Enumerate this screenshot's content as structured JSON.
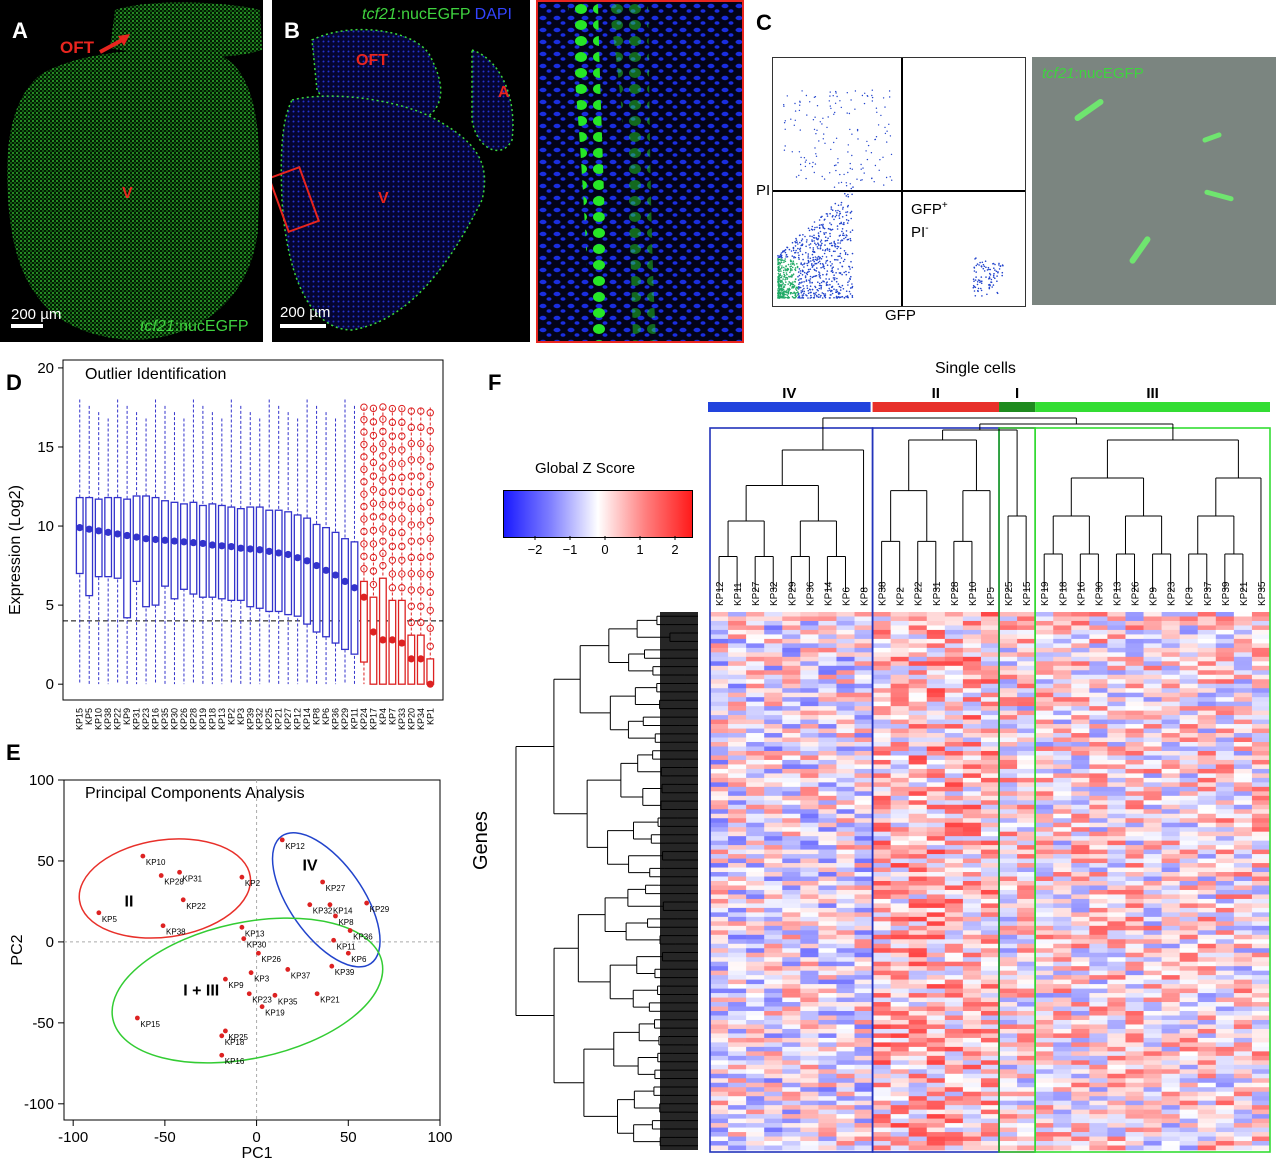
{
  "panelA": {
    "letter": "A",
    "oft": "OFT",
    "v": "V",
    "scale": "200 µm",
    "stain_italic": "tcf21",
    "stain_rest": ":nucEGFP"
  },
  "panelB": {
    "letter": "B",
    "stain_italic": "tcf21",
    "stain_rest": ":nucEGFP",
    "dapi": "DAPI",
    "oft": "OFT",
    "a": "A",
    "v": "V",
    "scale": "200 µm"
  },
  "panelC": {
    "letter": "C",
    "pi": "PI",
    "gfp_axis": "GFP",
    "gate_line1": "GFP",
    "gate_sup1": "+",
    "gate_line2": "PI",
    "gate_sup2": "-",
    "cell_stain_italic": "tcf21",
    "cell_stain_rest": ":nucEGFP"
  },
  "panelD": {
    "letter": "D",
    "title": "Outlier Identification",
    "ylabel": "Expression (Log2)",
    "yticks": [
      "0",
      "5",
      "10",
      "15",
      "20"
    ],
    "colors": {
      "normal": "#3333cc",
      "outlier": "#dd2222"
    }
  },
  "panelE": {
    "letter": "E",
    "title": "Principal Components Analysis",
    "xlabel": "PC1",
    "ylabel": "PC2",
    "xticks": [
      "-100",
      "-50",
      "0",
      "50",
      "100"
    ],
    "yticks": [
      "100",
      "50",
      "0",
      "-50",
      "-100"
    ],
    "cluster_labels": [
      "II",
      "IV",
      "I + III"
    ]
  },
  "panelF": {
    "letter": "F",
    "title": "Single cells",
    "legend_title": "Global Z Score",
    "legend_ticks": [
      "−2",
      "−1",
      "0",
      "1",
      "2"
    ],
    "genes_label": "Genes",
    "groups": [
      {
        "name": "IV",
        "color": "#2244dd"
      },
      {
        "name": "II",
        "color": "#e8302a"
      },
      {
        "name": "I",
        "color": "#1e8a1e"
      },
      {
        "name": "III",
        "color": "#33dd33"
      }
    ],
    "columns": [
      "KP12",
      "KP11",
      "KP27",
      "KP32",
      "KP29",
      "KP36",
      "KP14",
      "KP6",
      "KP8",
      "KP38",
      "KP2",
      "KP22",
      "KP31",
      "KP28",
      "KP10",
      "KP5",
      "KP25",
      "KP15",
      "KP19",
      "KP18",
      "KP16",
      "KP30",
      "KP13",
      "KP26",
      "KP9",
      "KP23",
      "KP3",
      "KP37",
      "KP39",
      "KP21",
      "KP35"
    ]
  },
  "chart_data": [
    {
      "type": "box",
      "panel": "D",
      "title": "Outlier Identification",
      "xlabel": "",
      "ylabel": "Expression (Log2)",
      "ylim": [
        0,
        20
      ],
      "threshold": 4,
      "categories": [
        "KP15",
        "KP5",
        "KP10",
        "KP38",
        "KP22",
        "KP9",
        "KP31",
        "KP23",
        "KP16",
        "KP35",
        "KP30",
        "KP26",
        "KP28",
        "KP19",
        "KP18",
        "KP13",
        "KP2",
        "KP3",
        "KP39",
        "KP32",
        "KP25",
        "KP21",
        "KP27",
        "KP12",
        "KP14",
        "KP8",
        "KP6",
        "KP36",
        "KP29",
        "KP11",
        "KP24",
        "KP17",
        "KP4",
        "KP7",
        "KP33",
        "KP20",
        "KP34",
        "KP1"
      ],
      "medians": [
        9.9,
        9.8,
        9.7,
        9.6,
        9.5,
        9.4,
        9.3,
        9.2,
        9.15,
        9.1,
        9.05,
        9.0,
        8.95,
        8.9,
        8.8,
        8.75,
        8.7,
        8.6,
        8.55,
        8.5,
        8.4,
        8.3,
        8.2,
        8.0,
        7.8,
        7.5,
        7.2,
        6.9,
        6.5,
        6.1,
        5.5,
        3.3,
        2.8,
        2.8,
        2.6,
        1.6,
        1.6,
        0.0
      ],
      "q1": [
        7.0,
        5.6,
        6.8,
        6.8,
        6.7,
        4.2,
        6.5,
        4.9,
        5.0,
        6.2,
        5.4,
        6.0,
        5.7,
        5.5,
        5.5,
        5.4,
        5.3,
        5.3,
        4.9,
        4.8,
        4.6,
        4.6,
        4.4,
        4.3,
        3.8,
        3.3,
        3.0,
        2.6,
        2.2,
        1.9,
        1.4,
        0.0,
        0.0,
        0.0,
        0.0,
        0.0,
        0.0,
        0.0
      ],
      "q3": [
        11.8,
        11.8,
        11.7,
        11.8,
        11.8,
        11.7,
        11.9,
        11.9,
        11.8,
        11.6,
        11.5,
        11.4,
        11.5,
        11.3,
        11.4,
        11.3,
        11.2,
        11.1,
        11.2,
        11.2,
        11.0,
        11.0,
        10.9,
        10.7,
        10.5,
        10.1,
        9.9,
        9.6,
        9.2,
        9.0,
        6.5,
        5.5,
        6.7,
        5.3,
        5.3,
        3.1,
        3.1,
        1.6
      ],
      "outlier_group": [
        "KP24",
        "KP17",
        "KP4",
        "KP7",
        "KP33",
        "KP20",
        "KP34",
        "KP1"
      ]
    },
    {
      "type": "scatter",
      "panel": "E",
      "title": "Principal Components Analysis",
      "xlabel": "PC1",
      "ylabel": "PC2",
      "xlim": [
        -105,
        100
      ],
      "ylim": [
        -110,
        100
      ],
      "points": [
        {
          "label": "KP10",
          "x": -62,
          "y": 53
        },
        {
          "label": "KP28",
          "x": -52,
          "y": 41
        },
        {
          "label": "KP31",
          "x": -42,
          "y": 43
        },
        {
          "label": "KP2",
          "x": -8,
          "y": 40
        },
        {
          "label": "KP22",
          "x": -40,
          "y": 26
        },
        {
          "label": "KP5",
          "x": -86,
          "y": 18
        },
        {
          "label": "KP38",
          "x": -51,
          "y": 10
        },
        {
          "label": "KP12",
          "x": 14,
          "y": 63
        },
        {
          "label": "KP27",
          "x": 36,
          "y": 37
        },
        {
          "label": "KP32",
          "x": 29,
          "y": 23
        },
        {
          "label": "KP14",
          "x": 40,
          "y": 23
        },
        {
          "label": "KP29",
          "x": 60,
          "y": 24
        },
        {
          "label": "KP8",
          "x": 43,
          "y": 16
        },
        {
          "label": "KP36",
          "x": 51,
          "y": 7
        },
        {
          "label": "KP11",
          "x": 42,
          "y": 1
        },
        {
          "label": "KP6",
          "x": 50,
          "y": -7
        },
        {
          "label": "KP39",
          "x": 41,
          "y": -15
        },
        {
          "label": "KP13",
          "x": -8,
          "y": 9
        },
        {
          "label": "KP30",
          "x": -7,
          "y": 2
        },
        {
          "label": "KP26",
          "x": 1,
          "y": -7
        },
        {
          "label": "KP37",
          "x": 17,
          "y": -17
        },
        {
          "label": "KP3",
          "x": -3,
          "y": -19
        },
        {
          "label": "KP9",
          "x": -17,
          "y": -23
        },
        {
          "label": "KP23",
          "x": -4,
          "y": -32
        },
        {
          "label": "KP35",
          "x": 10,
          "y": -33
        },
        {
          "label": "KP21",
          "x": 33,
          "y": -32
        },
        {
          "label": "KP19",
          "x": 3,
          "y": -40
        },
        {
          "label": "KP15",
          "x": -65,
          "y": -47
        },
        {
          "label": "KP25",
          "x": -17,
          "y": -55
        },
        {
          "label": "KP18",
          "x": -19,
          "y": -58
        },
        {
          "label": "KP16",
          "x": -19,
          "y": -70
        }
      ],
      "clusters": [
        {
          "name": "II",
          "color": "#e8302a"
        },
        {
          "name": "IV",
          "color": "#2244cc"
        },
        {
          "name": "I + III",
          "color": "#33cc33"
        }
      ]
    },
    {
      "type": "heatmap",
      "panel": "F",
      "title": "Single cells",
      "color_scale": {
        "title": "Global Z Score",
        "range": [
          -2.5,
          2.5
        ],
        "low": "#1a1aff",
        "mid": "#ffffff",
        "high": "#ff1a1a"
      },
      "columns": [
        "KP12",
        "KP11",
        "KP27",
        "KP32",
        "KP29",
        "KP36",
        "KP14",
        "KP6",
        "KP8",
        "KP38",
        "KP2",
        "KP22",
        "KP31",
        "KP28",
        "KP10",
        "KP5",
        "KP25",
        "KP15",
        "KP19",
        "KP18",
        "KP16",
        "KP30",
        "KP13",
        "KP26",
        "KP9",
        "KP23",
        "KP3",
        "KP37",
        "KP39",
        "KP21",
        "KP35"
      ],
      "groups": [
        {
          "name": "IV",
          "columns": [
            "KP12",
            "KP11",
            "KP27",
            "KP32",
            "KP29",
            "KP36",
            "KP14",
            "KP6",
            "KP8"
          ]
        },
        {
          "name": "II",
          "columns": [
            "KP38",
            "KP2",
            "KP22",
            "KP31",
            "KP28",
            "KP10",
            "KP5"
          ]
        },
        {
          "name": "I",
          "columns": [
            "KP25",
            "KP15"
          ]
        },
        {
          "name": "III",
          "columns": [
            "KP19",
            "KP18",
            "KP16",
            "KP30",
            "KP13",
            "KP26",
            "KP9",
            "KP23",
            "KP3",
            "KP37",
            "KP39",
            "KP21",
            "KP35"
          ]
        }
      ],
      "rows_label": "Genes"
    }
  ]
}
